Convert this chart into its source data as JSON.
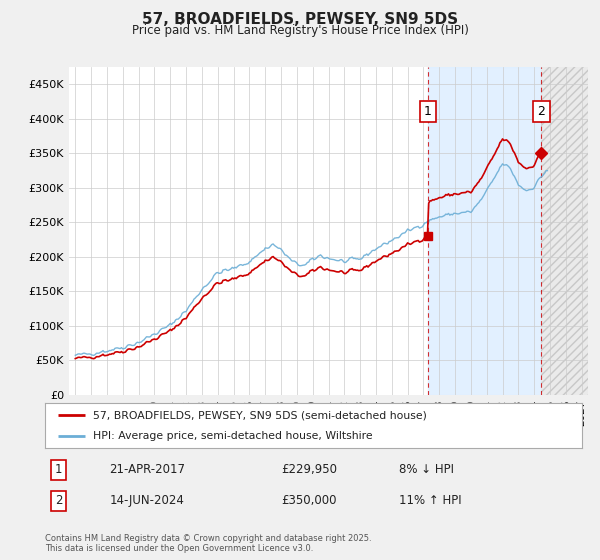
{
  "title": "57, BROADFIELDS, PEWSEY, SN9 5DS",
  "subtitle": "Price paid vs. HM Land Registry's House Price Index (HPI)",
  "hpi_color": "#6baed6",
  "price_color": "#cc0000",
  "background_color": "#f0f0f0",
  "plot_bg_color": "#ffffff",
  "shade_between_color": "#ddeeff",
  "shade_after_color": "#e8e8e8",
  "ylim": [
    0,
    475000
  ],
  "yticks": [
    0,
    50000,
    100000,
    150000,
    200000,
    250000,
    300000,
    350000,
    400000,
    450000
  ],
  "ytick_labels": [
    "£0",
    "£50K",
    "£100K",
    "£150K",
    "£200K",
    "£250K",
    "£300K",
    "£350K",
    "£400K",
    "£450K"
  ],
  "transaction1_x": 2017.29,
  "transaction1_y": 229950,
  "transaction1_label": "1",
  "transaction1_date": "21-APR-2017",
  "transaction1_price": "£229,950",
  "transaction1_hpi": "8% ↓ HPI",
  "transaction2_x": 2024.45,
  "transaction2_y": 350000,
  "transaction2_label": "2",
  "transaction2_date": "14-JUN-2024",
  "transaction2_price": "£350,000",
  "transaction2_hpi": "11% ↑ HPI",
  "legend_label1": "57, BROADFIELDS, PEWSEY, SN9 5DS (semi-detached house)",
  "legend_label2": "HPI: Average price, semi-detached house, Wiltshire",
  "footnote": "Contains HM Land Registry data © Crown copyright and database right 2025.\nThis data is licensed under the Open Government Licence v3.0.",
  "xlim_start": 1994.6,
  "xlim_end": 2027.4
}
